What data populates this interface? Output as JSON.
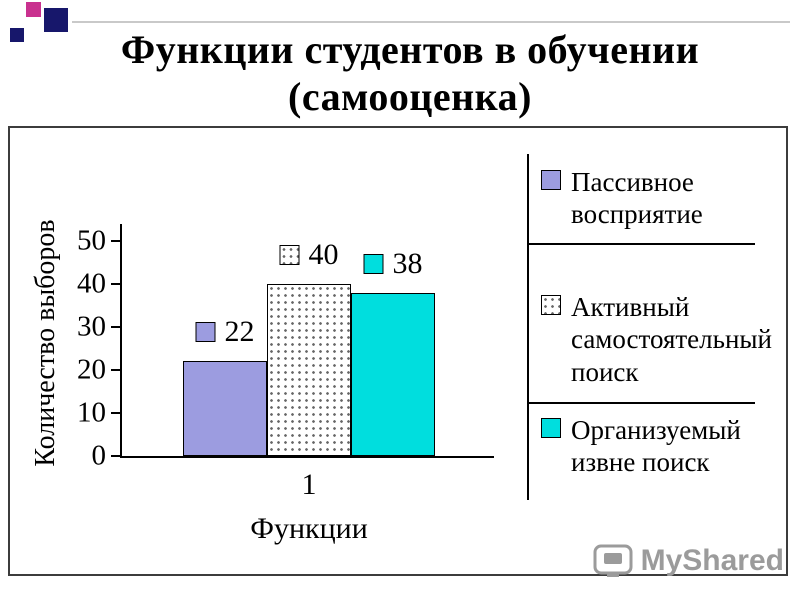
{
  "title": {
    "line1": "Функции студентов в обучении",
    "line2": "(самооценка)"
  },
  "chart_data": {
    "type": "bar",
    "title": "Функции студентов в обучении (самооценка)",
    "categories": [
      "1"
    ],
    "xlabel": "Функции",
    "ylabel": "Количество выборов",
    "ylim": [
      0,
      50
    ],
    "yticks": [
      0,
      10,
      20,
      30,
      40,
      50
    ],
    "grid": false,
    "legend_position": "right",
    "series": [
      {
        "name": "Пассивное восприятие",
        "values": [
          22
        ],
        "color": "#9c9ce0",
        "pattern": "solid"
      },
      {
        "name": "Активный самостоятельный поиск",
        "values": [
          40
        ],
        "color": "#ffffff",
        "pattern": "dots"
      },
      {
        "name": "Организуемый извне поиск",
        "values": [
          38
        ],
        "color": "#00dede",
        "pattern": "solid"
      }
    ],
    "data_labels": [
      22,
      40,
      38
    ]
  },
  "watermark": {
    "label": "MyShared"
  }
}
